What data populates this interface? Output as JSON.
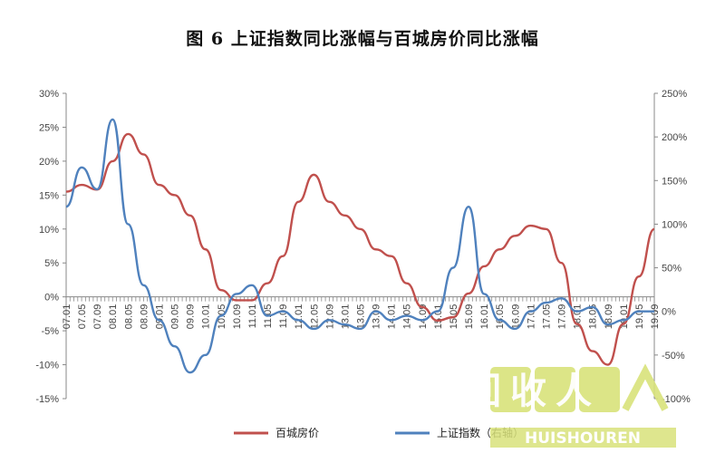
{
  "title": "图 6    上证指数同比涨幅与百城房价同比涨幅",
  "watermark": {
    "main": "回收人",
    "sub": "HUISHOUREN"
  },
  "chart_data": {
    "type": "line",
    "title": "图 6    上证指数同比涨幅与百城房价同比涨幅",
    "x_categories": [
      "07.01",
      "07.05",
      "07.09",
      "08.01",
      "08.05",
      "08.09",
      "09.01",
      "09.05",
      "09.09",
      "10.01",
      "10.05",
      "10.09",
      "11.01",
      "11.05",
      "11.09",
      "12.01",
      "12.05",
      "12.09",
      "13.01",
      "13.05",
      "13.09",
      "14.01",
      "14.05",
      "14.09",
      "15.01",
      "15.05",
      "15.09",
      "16.01",
      "16.05",
      "16.09",
      "17.01",
      "17.05",
      "17.09",
      "18.01",
      "18.05",
      "18.09",
      "19.01",
      "19.05",
      "19.09"
    ],
    "y_left": {
      "min": -15,
      "max": 30,
      "ticks": [
        -15,
        -10,
        -5,
        0,
        5,
        10,
        15,
        20,
        25,
        30
      ],
      "tick_labels": [
        "-15%",
        "-10%",
        "-5%",
        "0%",
        "5%",
        "10%",
        "15%",
        "20%",
        "25%",
        "30%"
      ]
    },
    "y_right": {
      "min": -100,
      "max": 250,
      "ticks": [
        -100,
        -50,
        0,
        50,
        100,
        150,
        200,
        250
      ],
      "tick_labels": [
        "-100%",
        "-50%",
        "0%",
        "50%",
        "100%",
        "150%",
        "200%",
        "250%"
      ]
    },
    "grid": false,
    "legend_position": "bottom",
    "series": [
      {
        "name": "百城房价",
        "axis": "left",
        "color": "#c0504d",
        "values": [
          15.5,
          16.5,
          15.8,
          20,
          24,
          21,
          16.5,
          15,
          12,
          7,
          1,
          -0.5,
          -0.5,
          2,
          6,
          14,
          18,
          14,
          12,
          10,
          7,
          6,
          2,
          -1.5,
          -3.5,
          -3,
          0.5,
          4.5,
          7,
          9,
          10.5,
          10,
          5,
          -4,
          -8,
          -10,
          -4,
          3,
          10
        ]
      },
      {
        "name": "上证指数（右轴）",
        "axis": "right",
        "color": "#4f81bd",
        "values": [
          120,
          165,
          140,
          220,
          100,
          30,
          -10,
          -40,
          -70,
          -50,
          -5,
          20,
          30,
          -5,
          0,
          -10,
          -20,
          -10,
          -15,
          -20,
          0,
          -10,
          -5,
          -10,
          0,
          50,
          120,
          20,
          -10,
          -20,
          0,
          10,
          15,
          0,
          5,
          -15,
          -10,
          0,
          0
        ]
      }
    ],
    "legend": [
      "百城房价",
      "上证指数（右轴）"
    ]
  }
}
